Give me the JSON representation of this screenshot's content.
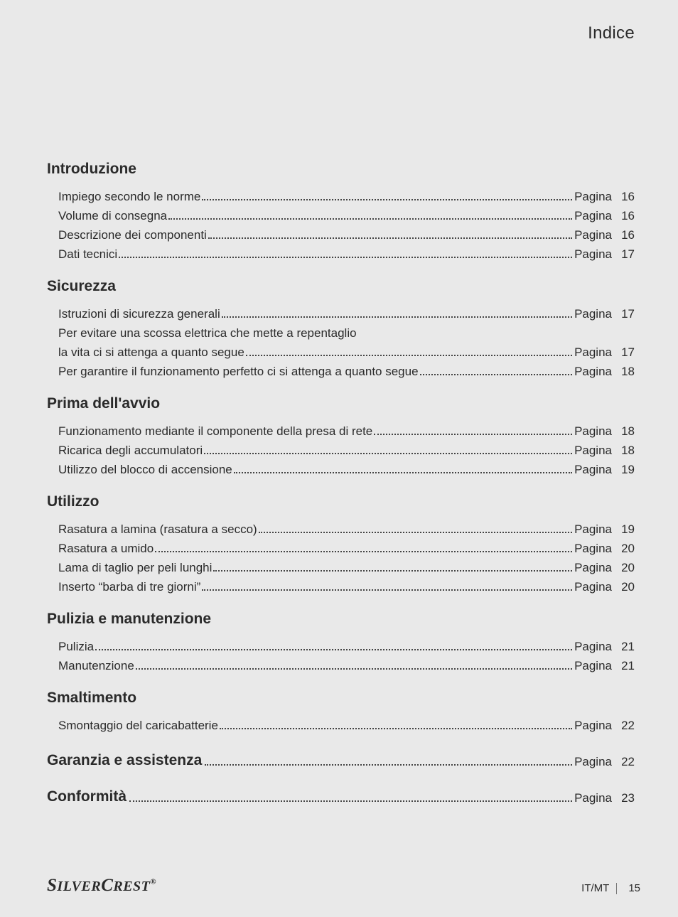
{
  "header": {
    "title": "Indice"
  },
  "page_label": "Pagina",
  "sections": [
    {
      "heading": "Introduzione",
      "inline": false,
      "entries": [
        {
          "label": "Impiego secondo le norme",
          "page": "16"
        },
        {
          "label": "Volume di consegna",
          "page": "16"
        },
        {
          "label": "Descrizione dei componenti",
          "page": "16"
        },
        {
          "label": "Dati tecnici",
          "page": "17"
        }
      ]
    },
    {
      "heading": "Sicurezza",
      "inline": false,
      "entries": [
        {
          "label": "Istruzioni di sicurezza generali",
          "page": "17"
        },
        {
          "label": "Per evitare una scossa elettrica che mette a repentaglio",
          "continuation": "la vita ci si attenga a quanto segue",
          "page": "17"
        },
        {
          "label": "Per garantire il funzionamento perfetto ci si attenga a quanto segue",
          "page": "18"
        }
      ]
    },
    {
      "heading": "Prima dell'avvio",
      "inline": false,
      "entries": [
        {
          "label": "Funzionamento mediante il componente della presa di rete",
          "page": "18"
        },
        {
          "label": "Ricarica degli accumulatori",
          "page": "18"
        },
        {
          "label": "Utilizzo del blocco di accensione",
          "page": "19"
        }
      ]
    },
    {
      "heading": "Utilizzo",
      "inline": false,
      "entries": [
        {
          "label": "Rasatura a lamina (rasatura a secco)",
          "page": "19"
        },
        {
          "label": "Rasatura a umido",
          "page": "20"
        },
        {
          "label": "Lama di taglio per peli lunghi",
          "page": "20"
        },
        {
          "label": "Inserto “barba di tre giorni”",
          "page": "20"
        }
      ]
    },
    {
      "heading": "Pulizia e manutenzione",
      "inline": false,
      "entries": [
        {
          "label": "Pulizia",
          "page": "21"
        },
        {
          "label": "Manutenzione",
          "page": "21"
        }
      ]
    },
    {
      "heading": "Smaltimento",
      "inline": false,
      "entries": [
        {
          "label": "Smontaggio del caricabatterie",
          "page": "22"
        }
      ]
    },
    {
      "heading": "Garanzia e assistenza",
      "inline": true,
      "page": "22"
    },
    {
      "heading": "Conformità",
      "inline": true,
      "page": "23"
    }
  ],
  "footer": {
    "brand": "SilverCrest",
    "locale": "IT/MT",
    "page_number": "15"
  },
  "styling": {
    "background_color": "#e9e9e9",
    "text_color": "#2a2a2a",
    "header_fontsize": 24,
    "heading_fontsize": 21,
    "entry_fontsize": 17,
    "footer_fontsize": 15,
    "brand_fontsize": 25,
    "line_height": 27,
    "font_family": "Futura / Century Gothic",
    "brand_font_family": "Times New Roman italic bold",
    "leader_style": "dotted",
    "leader_color": "#444444"
  }
}
